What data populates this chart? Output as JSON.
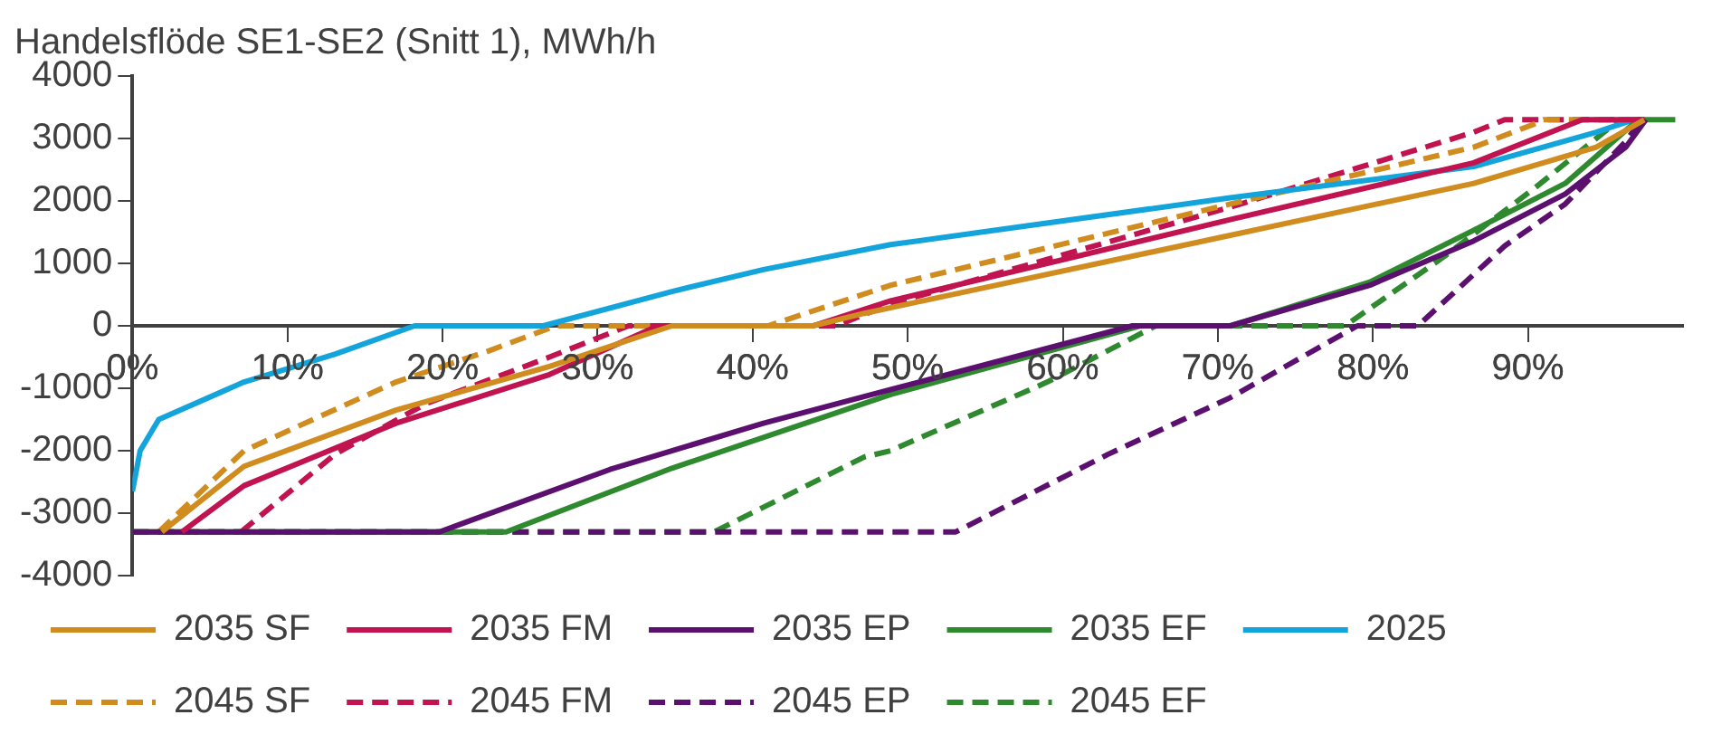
{
  "chart_data": {
    "type": "line",
    "title": "Handelsflöde SE1-SE2 (Snitt 1), MWh/h",
    "series": [
      {
        "name": "2035 SF",
        "color": "#d08c1e",
        "line_style": "solid",
        "x": [
          1.9,
          7.2,
          17,
          26.9,
          34.8,
          43.9,
          47.2,
          70.8,
          86.5,
          94.4,
          97.5
        ],
        "values": [
          -3300,
          -2250,
          -1350,
          -650,
          0,
          0,
          200,
          1450,
          2280,
          2860,
          3300
        ]
      },
      {
        "name": "2035 FM",
        "color": "#c0134f",
        "line_style": "solid",
        "x": [
          3.2,
          7.2,
          17,
          26.9,
          33.9,
          43.9,
          48.9,
          70.8,
          86.5,
          93.5,
          97.5
        ],
        "values": [
          -3300,
          -2560,
          -1560,
          -780,
          0,
          0,
          400,
          1700,
          2610,
          3300,
          3300
        ]
      },
      {
        "name": "2035 EP",
        "color": "#5b0f6e",
        "line_style": "solid",
        "x": [
          0,
          19.8,
          30.8,
          40.7,
          48.9,
          64.5,
          70.8,
          79.8,
          86.5,
          92.4,
          96.3,
          97.6
        ],
        "values": [
          -3300,
          -3300,
          -2300,
          -1560,
          -1020,
          0,
          0,
          650,
          1360,
          2110,
          2860,
          3300
        ]
      },
      {
        "name": "2035 EF",
        "color": "#2f8a2f",
        "line_style": "solid",
        "x": [
          0,
          24.1,
          34.8,
          48.9,
          65,
          70.8,
          79.8,
          86.5,
          92.4,
          97.1,
          99.5
        ],
        "values": [
          -3300,
          -3300,
          -2280,
          -1100,
          0,
          0,
          700,
          1530,
          2280,
          3300,
          3300
        ]
      },
      {
        "name": "2025",
        "color": "#13a4dc",
        "line_style": "solid",
        "x": [
          0,
          0.5,
          1.7,
          7.2,
          13.1,
          18.2,
          26.5,
          34.8,
          40.7,
          48.9,
          70.8,
          86.5,
          94.4,
          96.8
        ],
        "values": [
          -2650,
          -2000,
          -1500,
          -900,
          -450,
          0,
          0,
          550,
          900,
          1300,
          2050,
          2550,
          3100,
          3300
        ]
      },
      {
        "name": "2045 SF",
        "color": "#d08c1e",
        "line_style": "dashed",
        "x": [
          1.7,
          7.2,
          17,
          23,
          27.3,
          41,
          48.9,
          70.8,
          86.5,
          90.4,
          91,
          97.5
        ],
        "values": [
          -3300,
          -2000,
          -900,
          -400,
          0,
          0,
          650,
          1950,
          2860,
          3230,
          3300,
          3300
        ]
      },
      {
        "name": "2045 FM",
        "color": "#c0134f",
        "line_style": "dashed",
        "x": [
          7,
          13.1,
          18.9,
          26.9,
          32,
          45.4,
          48.9,
          70.8,
          86.5,
          88.5,
          97.5
        ],
        "values": [
          -3300,
          -2050,
          -1250,
          -500,
          0,
          0,
          350,
          1900,
          3100,
          3300,
          3300
        ]
      },
      {
        "name": "2045 EP",
        "color": "#5b0f6e",
        "line_style": "dashed",
        "x": [
          0,
          53.1,
          62.9,
          70.8,
          79,
          82.9,
          88.5,
          92.4,
          96.3,
          97.3
        ],
        "values": [
          -3300,
          -3300,
          -2060,
          -1150,
          0,
          0,
          1280,
          1950,
          2950,
          3300
        ]
      },
      {
        "name": "2045 EF",
        "color": "#2f8a2f",
        "line_style": "dashed",
        "x": [
          0,
          37.5,
          47.2,
          48.9,
          59,
          66,
          78.2,
          84.6,
          90.4,
          95.9,
          97.5
        ],
        "values": [
          -3300,
          -3300,
          -2100,
          -2000,
          -900,
          0,
          0,
          1110,
          2200,
          3300,
          3300
        ]
      }
    ],
    "xlim": [
      0,
      100
    ],
    "xticks": [
      {
        "value": 0,
        "label": "0%"
      },
      {
        "value": 10,
        "label": "10%"
      },
      {
        "value": 20,
        "label": "20%"
      },
      {
        "value": 30,
        "label": "30%"
      },
      {
        "value": 40,
        "label": "40%"
      },
      {
        "value": 50,
        "label": "50%"
      },
      {
        "value": 60,
        "label": "60%"
      },
      {
        "value": 70,
        "label": "70%"
      },
      {
        "value": 80,
        "label": "80%"
      },
      {
        "value": 90,
        "label": "90%"
      }
    ],
    "ylim": [
      -4000,
      4000
    ],
    "yticks": [
      -4000,
      -3000,
      -2000,
      -1000,
      0,
      1000,
      2000,
      3000,
      4000
    ],
    "grid": false,
    "legend": "bottom",
    "marker": "none"
  }
}
